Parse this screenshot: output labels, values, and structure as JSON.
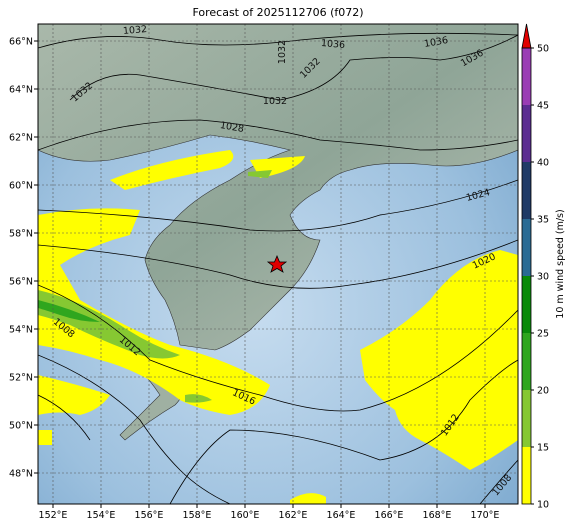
{
  "map": {
    "title": "Forecast of 2025112706 (f072)",
    "lon_labels": [
      "152°E",
      "154°E",
      "156°E",
      "158°E",
      "160°E",
      "162°E",
      "164°E",
      "166°E",
      "168°E",
      "170°E"
    ],
    "lat_labels": [
      "66°N",
      "64°N",
      "62°N",
      "60°N",
      "58°N",
      "56°N",
      "54°N",
      "52°N",
      "50°N",
      "48°N"
    ],
    "contour_labels": [
      "1032",
      "1036",
      "1036",
      "1036",
      "1032",
      "1032",
      "1032",
      "1032",
      "1028",
      "1024",
      "1020",
      "1008",
      "1012",
      "1016",
      "1012",
      "1008"
    ],
    "colorbar": {
      "label": "10 m wind speed (m/s)",
      "ticks": [
        10,
        15,
        20,
        25,
        30,
        35,
        40,
        45,
        50
      ],
      "colors": [
        "#ffff00",
        "#86c832",
        "#2fa61e",
        "#0a8a0a",
        "#2a6b94",
        "#1f3a66",
        "#5b2d91",
        "#9a3db4"
      ],
      "extend_color": "#e00000"
    }
  }
}
